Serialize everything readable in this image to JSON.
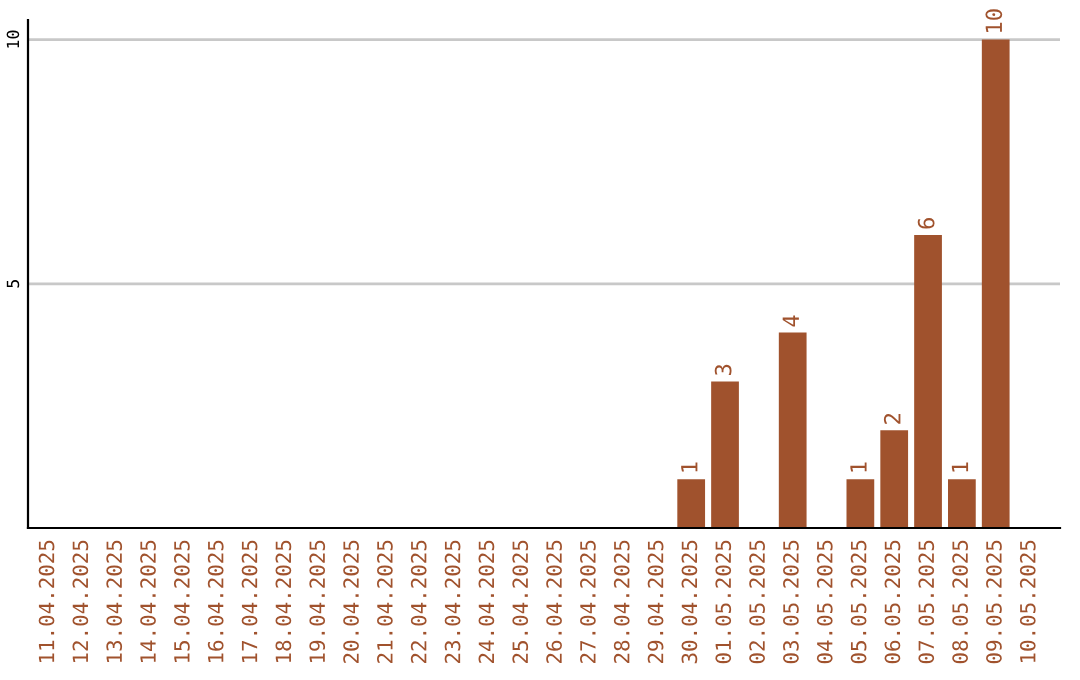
{
  "chart_data": {
    "type": "bar",
    "categories": [
      "11.04.2025",
      "12.04.2025",
      "13.04.2025",
      "14.04.2025",
      "15.04.2025",
      "16.04.2025",
      "17.04.2025",
      "18.04.2025",
      "19.04.2025",
      "20.04.2025",
      "21.04.2025",
      "22.04.2025",
      "23.04.2025",
      "24.04.2025",
      "25.04.2025",
      "26.04.2025",
      "27.04.2025",
      "28.04.2025",
      "29.04.2025",
      "30.04.2025",
      "01.05.2025",
      "02.05.2025",
      "03.05.2025",
      "04.05.2025",
      "05.05.2025",
      "06.05.2025",
      "07.05.2025",
      "08.05.2025",
      "09.05.2025",
      "10.05.2025"
    ],
    "values": [
      0,
      0,
      0,
      0,
      0,
      0,
      0,
      0,
      0,
      0,
      0,
      0,
      0,
      0,
      0,
      0,
      0,
      0,
      0,
      1,
      3,
      0,
      4,
      0,
      1,
      2,
      6,
      1,
      10,
      0
    ],
    "value_labels": [
      null,
      null,
      null,
      null,
      null,
      null,
      null,
      null,
      null,
      null,
      null,
      null,
      null,
      null,
      null,
      null,
      null,
      null,
      null,
      "1",
      "3",
      null,
      "4",
      null,
      "1",
      "2",
      "6",
      "1",
      "10",
      null
    ],
    "color": "#a0522d",
    "ylim": [
      0,
      10.4
    ],
    "yticks": [
      5,
      10
    ],
    "grid": "y"
  }
}
